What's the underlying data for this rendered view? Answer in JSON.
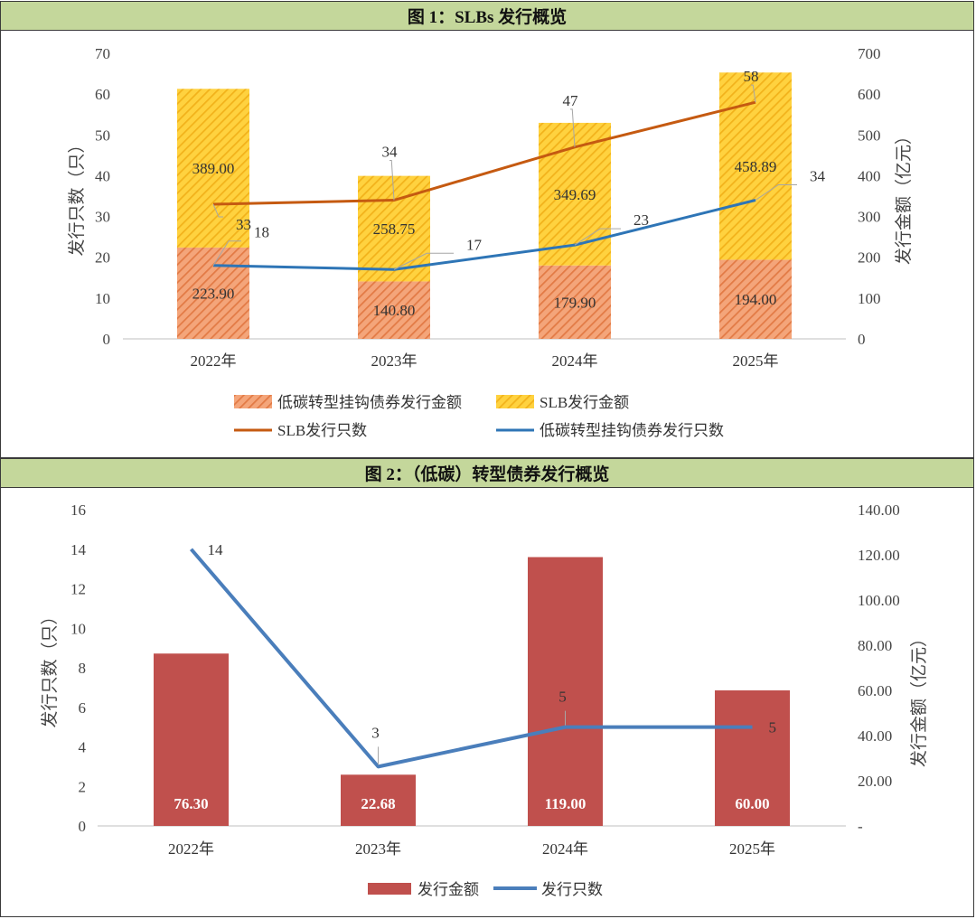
{
  "chart_data": [
    {
      "type": "bar",
      "title": "图 1：SLBs 发行概览",
      "categories": [
        "2022年",
        "2023年",
        "2024年",
        "2025年"
      ],
      "stacked": true,
      "series": [
        {
          "name": "低碳转型挂钩债券发行金额",
          "kind": "bar",
          "axis": "right",
          "values": [
            223.9,
            140.8,
            179.9,
            194.0
          ],
          "labels": [
            "223.90",
            "140.80",
            "179.90",
            "194.00"
          ],
          "color": "#f4a57a"
        },
        {
          "name": "SLB发行金额",
          "kind": "bar",
          "axis": "right",
          "values": [
            389.0,
            258.75,
            349.69,
            458.89
          ],
          "labels": [
            "389.00",
            "258.75",
            "349.69",
            "458.89"
          ],
          "color": "#ffd23f"
        },
        {
          "name": "SLB发行只数",
          "kind": "line",
          "axis": "left",
          "values": [
            33,
            34,
            47,
            58
          ],
          "labels": [
            "33",
            "34",
            "47",
            "58"
          ],
          "color": "#c55a11"
        },
        {
          "name": "低碳转型挂钩债券发行只数",
          "kind": "line",
          "axis": "left",
          "values": [
            18,
            17,
            23,
            34
          ],
          "labels": [
            "18",
            "17",
            "23",
            "34"
          ],
          "color": "#2e75b6"
        }
      ],
      "ylabel": "发行只数（只）",
      "y2label": "发行金额（亿元）",
      "ylim": [
        0,
        70
      ],
      "y2lim": [
        0,
        700
      ],
      "yticks": [
        "0",
        "10",
        "20",
        "30",
        "40",
        "50",
        "60",
        "70"
      ],
      "y2ticks": [
        "0",
        "100",
        "200",
        "300",
        "400",
        "500",
        "600",
        "700"
      ],
      "legend": "bottom"
    },
    {
      "type": "bar",
      "title": "图 2：（低碳）转型债券发行概览",
      "categories": [
        "2022年",
        "2023年",
        "2024年",
        "2025年"
      ],
      "series": [
        {
          "name": "发行金额",
          "kind": "bar",
          "axis": "right",
          "values": [
            76.3,
            22.68,
            119.0,
            60.0
          ],
          "labels": [
            "76.30",
            "22.68",
            "119.00",
            "60.00"
          ],
          "color": "#c0504d"
        },
        {
          "name": "发行只数",
          "kind": "line",
          "axis": "left",
          "values": [
            14,
            3,
            5,
            5
          ],
          "labels": [
            "14",
            "3",
            "5",
            "5"
          ],
          "color": "#4a7ebb"
        }
      ],
      "ylabel": "发行只数（只）",
      "y2label": "发行金额（亿元）",
      "ylim": [
        0,
        16
      ],
      "y2lim": [
        0,
        140
      ],
      "yticks": [
        "0",
        "2",
        "4",
        "6",
        "8",
        "10",
        "12",
        "14",
        "16"
      ],
      "y2ticks": [
        "-",
        "20.00",
        "40.00",
        "60.00",
        "80.00",
        "100.00",
        "120.00",
        "140.00"
      ],
      "legend": "bottom"
    }
  ]
}
